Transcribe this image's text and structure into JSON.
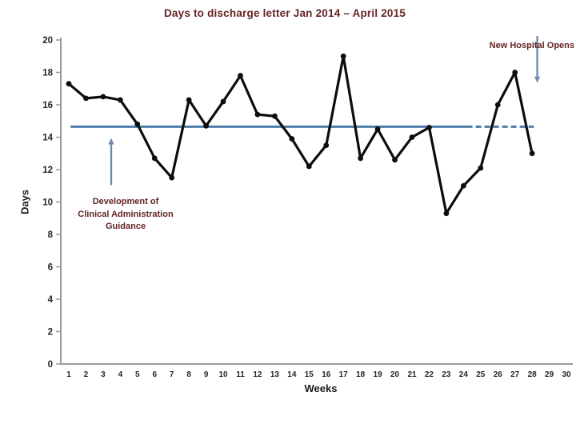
{
  "title": "Days to discharge letter Jan 2014 – April 2015",
  "colors": {
    "title_text": "#632423",
    "annotation_text": "#632423",
    "series_line": "#0d0d0d",
    "marker": "#0d0d0d",
    "mean_line": "#4f7dab",
    "annotation_arrow": "#6d8cad",
    "axis_line": "#9a9a9a",
    "tick_text": "#262626"
  },
  "annotations": {
    "development": {
      "lines": [
        "Development of",
        "Clinical Administration",
        "Guidance"
      ],
      "arrow": {
        "week": 3.47,
        "from_value": 11.05,
        "to_value": 13.85,
        "direction": "up"
      }
    },
    "new_hospital": {
      "label": "New Hospital Opens",
      "arrow": {
        "week": 28.3,
        "from_value": 20.25,
        "to_value": 17.45,
        "direction": "down"
      }
    }
  },
  "chart_data": {
    "type": "line",
    "title": "Days to discharge letter Jan 2014 – April 2015",
    "xlabel": "Weeks",
    "ylabel": "Days",
    "x": [
      1,
      2,
      3,
      4,
      5,
      6,
      7,
      8,
      9,
      10,
      11,
      12,
      13,
      14,
      15,
      16,
      17,
      18,
      19,
      20,
      21,
      22,
      23,
      24,
      25,
      26,
      27,
      28
    ],
    "values": [
      17.3,
      16.4,
      16.5,
      16.3,
      14.8,
      12.7,
      11.5,
      16.3,
      14.7,
      16.2,
      17.8,
      15.4,
      15.3,
      13.9,
      12.2,
      13.5,
      19.0,
      12.7,
      14.5,
      12.6,
      14.0,
      14.6,
      9.3,
      11.0,
      12.1,
      16.0,
      18.0,
      13.0
    ],
    "xticks": [
      1,
      2,
      3,
      4,
      5,
      6,
      7,
      8,
      9,
      10,
      11,
      12,
      13,
      14,
      15,
      16,
      17,
      18,
      19,
      20,
      21,
      22,
      23,
      24,
      25,
      26,
      27,
      28,
      29,
      30
    ],
    "yticks": [
      0,
      2,
      4,
      6,
      8,
      10,
      12,
      14,
      16,
      18,
      20
    ],
    "xlim": [
      0,
      30
    ],
    "ylim": [
      0,
      20
    ],
    "grid": false,
    "legend": false,
    "mean_line": {
      "value": 14.65,
      "start_week": 1.1,
      "solid_end_week": 24.2,
      "end_week": 28.1
    }
  }
}
